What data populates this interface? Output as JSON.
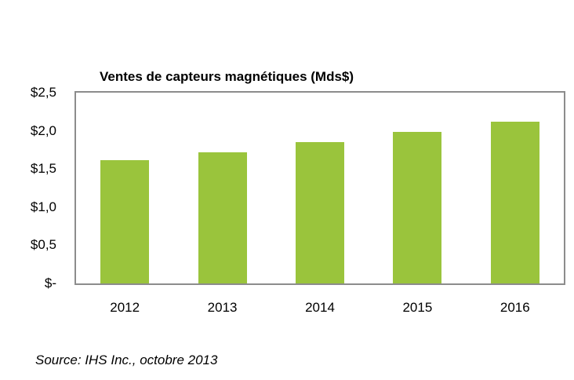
{
  "page": {
    "background": "#ffffff"
  },
  "colors": {
    "bar": "#9ac43c",
    "plot_border": "#8c8c8c",
    "text": "#000000"
  },
  "chart_data": {
    "type": "bar",
    "title": "Ventes de capteurs magnétiques (Mds$)",
    "categories": [
      "2012",
      "2013",
      "2014",
      "2015",
      "2016"
    ],
    "values": [
      1.62,
      1.72,
      1.85,
      1.99,
      2.12
    ],
    "xlabel": "",
    "ylabel": "",
    "ylim": [
      0,
      2.5
    ],
    "yticks": [
      {
        "value": 2.5,
        "label": "$2,5"
      },
      {
        "value": 2.0,
        "label": "$2,0"
      },
      {
        "value": 1.5,
        "label": "$1,5"
      },
      {
        "value": 1.0,
        "label": "$1,0"
      },
      {
        "value": 0.5,
        "label": "$0,5"
      },
      {
        "value": 0.0,
        "label": "$-"
      }
    ],
    "grid": false,
    "legend": false,
    "bar_color": "#9ac43c"
  },
  "source_note": "Source: IHS Inc., octobre 2013"
}
